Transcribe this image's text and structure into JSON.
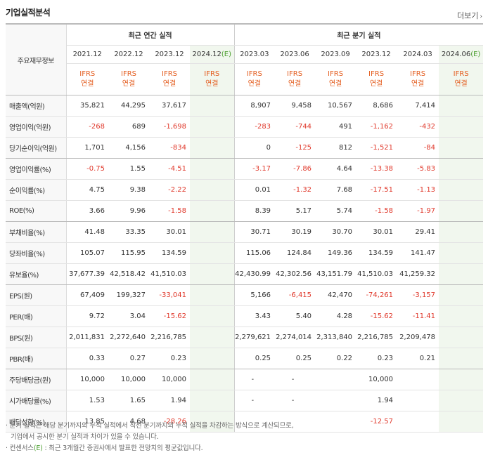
{
  "title": "기업실적분석",
  "more_label": "더보기",
  "header": {
    "item_label": "주요재무정보",
    "annual_label": "최근 연간 실적",
    "quarterly_label": "최근 분기 실적"
  },
  "periods": [
    {
      "label": "2021.12",
      "est": false
    },
    {
      "label": "2022.12",
      "est": false
    },
    {
      "label": "2023.12",
      "est": false
    },
    {
      "label": "2024.12",
      "est": true
    },
    {
      "label": "2023.03",
      "est": false
    },
    {
      "label": "2023.06",
      "est": false
    },
    {
      "label": "2023.09",
      "est": false
    },
    {
      "label": "2023.12",
      "est": false
    },
    {
      "label": "2024.03",
      "est": false
    },
    {
      "label": "2024.06",
      "est": true
    }
  ],
  "est_mark": "(E)",
  "ifrs_line1": "IFRS",
  "ifrs_line2": "연결",
  "rows": [
    {
      "label": "매출액(억원)",
      "values": [
        "35,821",
        "44,295",
        "37,617",
        "",
        "8,907",
        "9,458",
        "10,567",
        "8,686",
        "7,414",
        ""
      ]
    },
    {
      "label": "영업이익(억원)",
      "values": [
        "-268",
        "689",
        "-1,698",
        "",
        "-283",
        "-744",
        "491",
        "-1,162",
        "-432",
        ""
      ]
    },
    {
      "label": "당기순이익(억원)",
      "values": [
        "1,701",
        "4,156",
        "-834",
        "",
        "0",
        "-125",
        "812",
        "-1,521",
        "-84",
        ""
      ],
      "group_end": true
    },
    {
      "label": "영업이익률(%)",
      "values": [
        "-0.75",
        "1.55",
        "-4.51",
        "",
        "-3.17",
        "-7.86",
        "4.64",
        "-13.38",
        "-5.83",
        ""
      ]
    },
    {
      "label": "순이익률(%)",
      "values": [
        "4.75",
        "9.38",
        "-2.22",
        "",
        "0.01",
        "-1.32",
        "7.68",
        "-17.51",
        "-1.13",
        ""
      ]
    },
    {
      "label": "ROE(%)",
      "values": [
        "3.66",
        "9.96",
        "-1.58",
        "",
        "8.39",
        "5.17",
        "5.74",
        "-1.58",
        "-1.97",
        ""
      ],
      "group_end": true
    },
    {
      "label": "부채비율(%)",
      "values": [
        "41.48",
        "33.35",
        "30.01",
        "",
        "30.71",
        "30.19",
        "30.70",
        "30.01",
        "29.41",
        ""
      ]
    },
    {
      "label": "당좌비율(%)",
      "values": [
        "105.07",
        "115.95",
        "134.59",
        "",
        "115.06",
        "124.84",
        "149.36",
        "134.59",
        "141.47",
        ""
      ]
    },
    {
      "label": "유보율(%)",
      "values": [
        "37,677.39",
        "42,518.42",
        "41,510.03",
        "",
        "42,430.99",
        "42,302.56",
        "43,151.79",
        "41,510.03",
        "41,259.32",
        ""
      ],
      "group_end": true
    },
    {
      "label": "EPS(원)",
      "values": [
        "67,409",
        "199,327",
        "-33,041",
        "",
        "5,166",
        "-6,415",
        "42,470",
        "-74,261",
        "-3,157",
        ""
      ]
    },
    {
      "label": "PER(배)",
      "values": [
        "9.72",
        "3.04",
        "-15.62",
        "",
        "3.43",
        "5.40",
        "4.28",
        "-15.62",
        "-11.41",
        ""
      ]
    },
    {
      "label": "BPS(원)",
      "values": [
        "2,011,831",
        "2,272,640",
        "2,216,785",
        "",
        "2,279,621",
        "2,274,014",
        "2,313,840",
        "2,216,785",
        "2,209,478",
        ""
      ]
    },
    {
      "label": "PBR(배)",
      "values": [
        "0.33",
        "0.27",
        "0.23",
        "",
        "0.25",
        "0.25",
        "0.22",
        "0.23",
        "0.21",
        ""
      ],
      "group_end": true
    },
    {
      "label": "주당배당금(원)",
      "values": [
        "10,000",
        "10,000",
        "10,000",
        "",
        "-",
        "-",
        "",
        "10,000",
        "",
        ""
      ]
    },
    {
      "label": "시가배당률(%)",
      "values": [
        "1.53",
        "1.65",
        "1.94",
        "",
        "-",
        "-",
        "",
        "1.94",
        "",
        ""
      ]
    },
    {
      "label": "배당성향(%)",
      "values": [
        "13.85",
        "4.68",
        "-28.26",
        "",
        "",
        "",
        "",
        "-12.57",
        "",
        ""
      ]
    }
  ],
  "notes": {
    "line1": "분기 실적은 해당 분기까지의 누적 실적에서 직전 분기까지의 누적 실적을 차감하는 방식으로 계산되므로,",
    "line2": "기업에서 공시한 분기 실적과 차이가 있을 수 있습니다.",
    "line3_prefix": "컨센서스",
    "line3_mark": "(E)",
    "line3_suffix": " : 최근 3개월간 증권사에서 발표한 전망치의 평균값입니다."
  },
  "colors": {
    "negative": "#e0392c",
    "ifrs": "#e45e20",
    "estimate_bg": "#f1f7ee",
    "estimate_mark": "#4a9e2e"
  }
}
